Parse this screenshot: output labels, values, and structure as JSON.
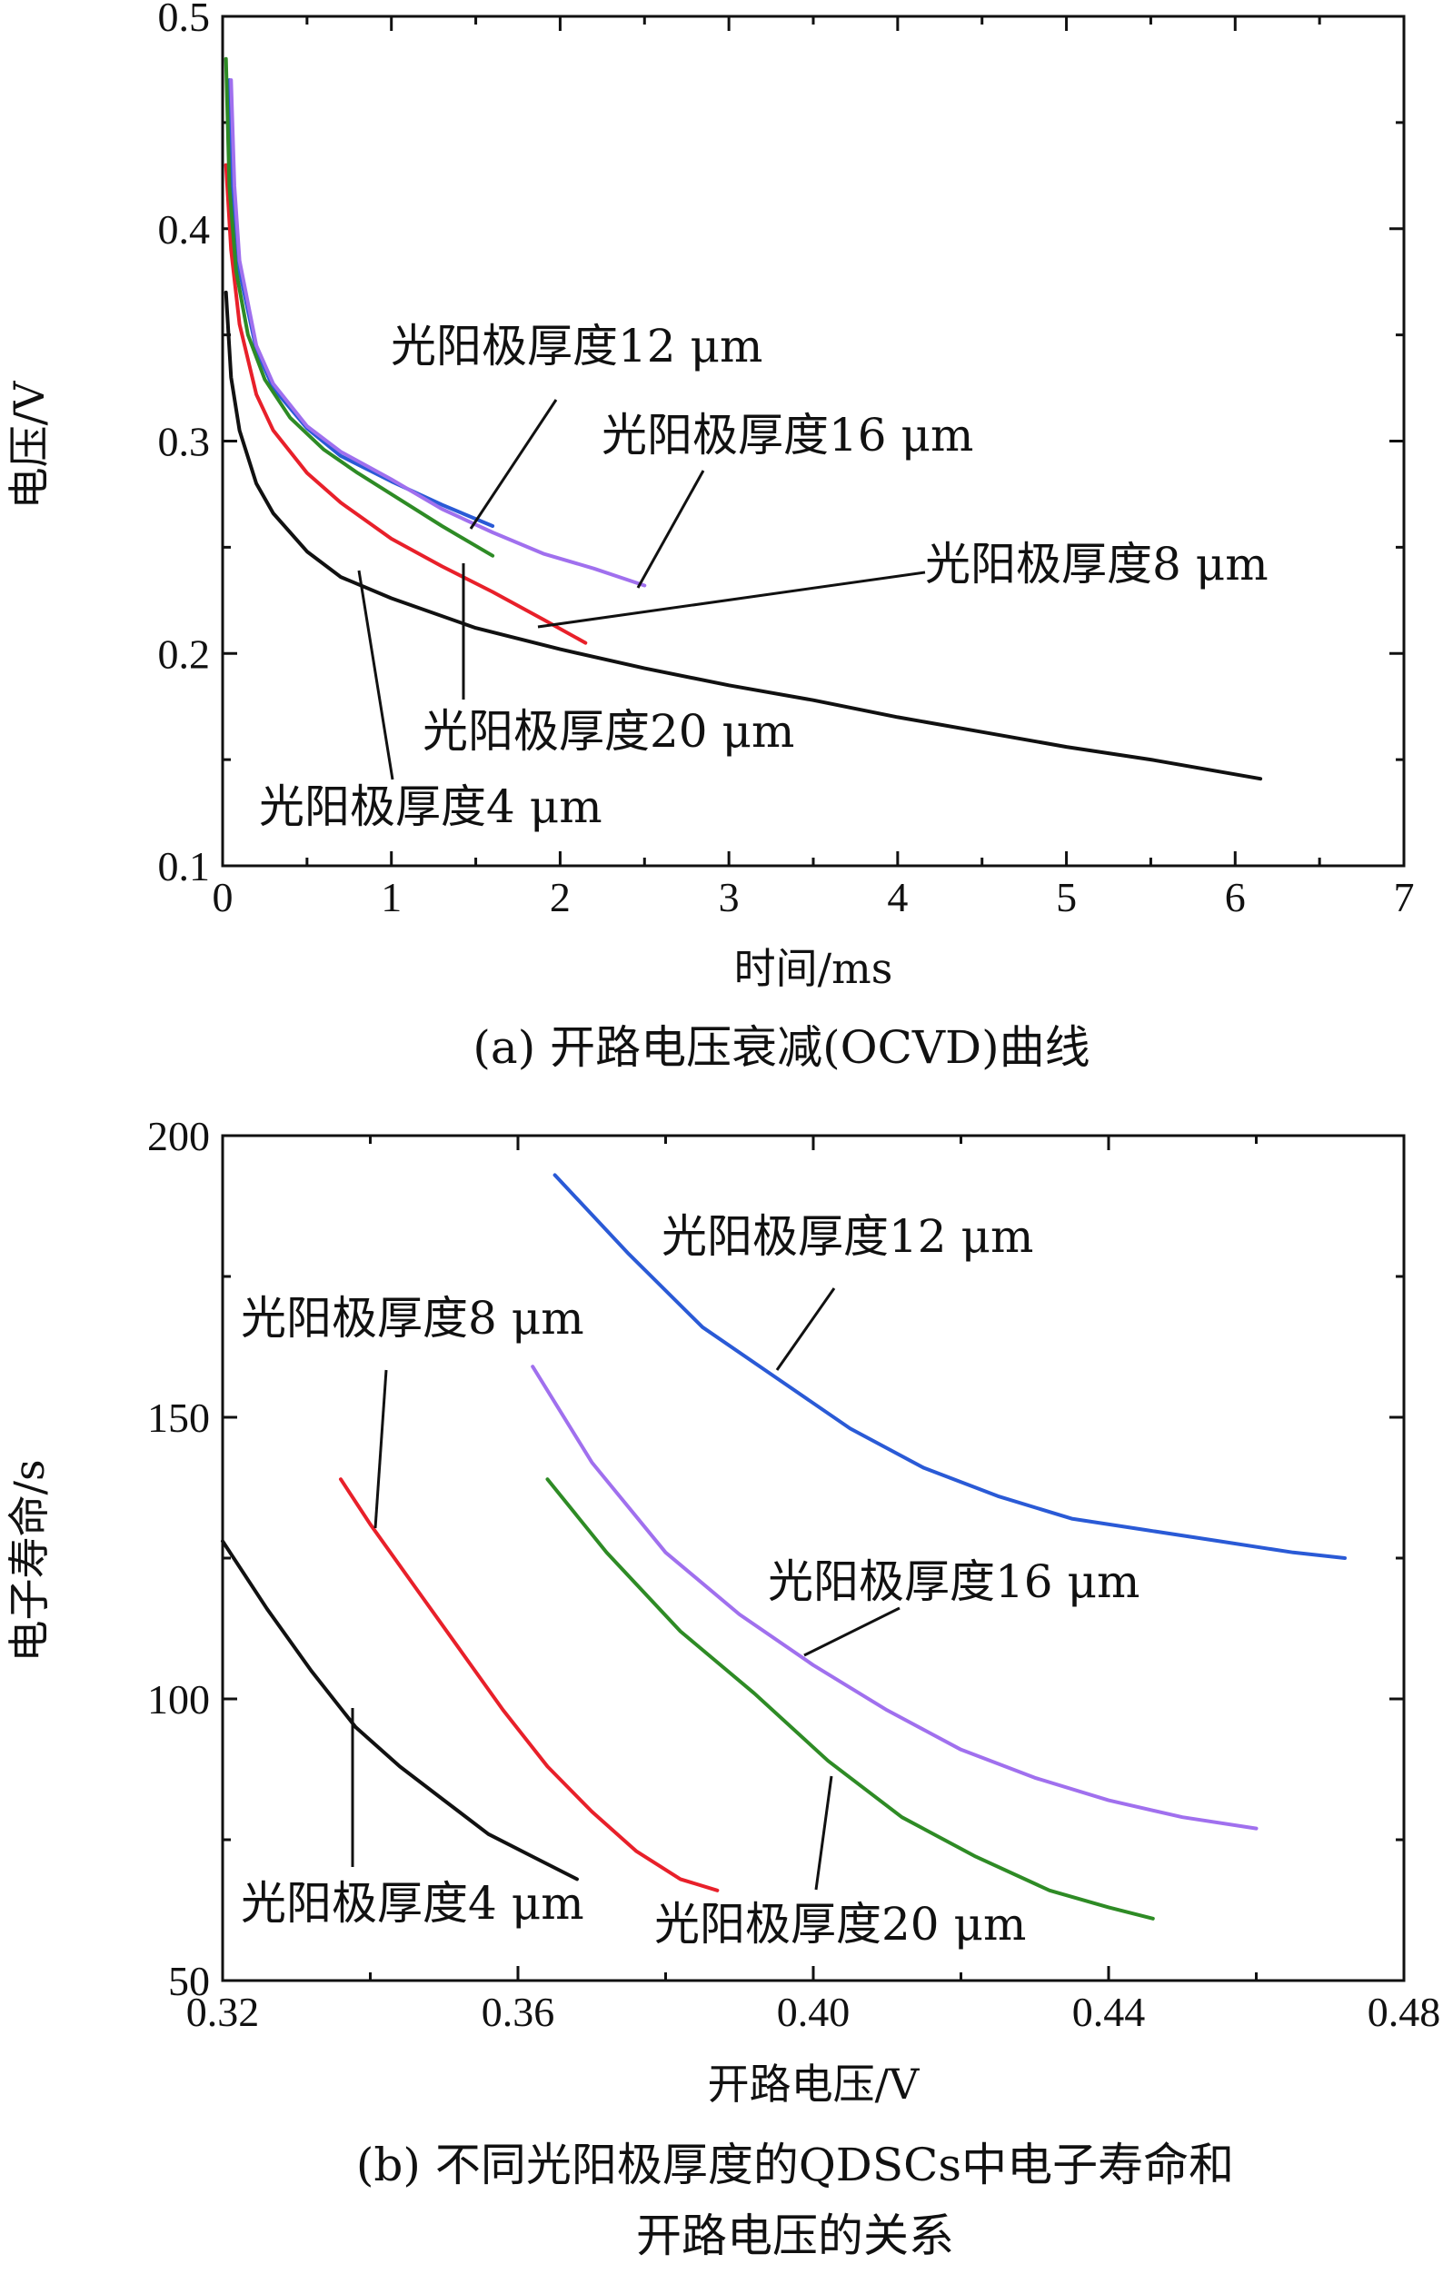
{
  "chart_data": [
    {
      "id": "a",
      "type": "line",
      "caption": "(a) 开路电压衰减(OCVD)曲线",
      "xlabel": "时间/ms",
      "ylabel": "电压/V",
      "xlim": [
        0,
        7
      ],
      "ylim": [
        0.1,
        0.5
      ],
      "xticks": [
        "0",
        "1",
        "2",
        "3",
        "4",
        "5",
        "6",
        "7"
      ],
      "yticks": [
        "0.1",
        "0.2",
        "0.3",
        "0.4",
        "0.5"
      ],
      "grid": false,
      "series": [
        {
          "name": "光阳极厚度4 μm",
          "color": "#111111",
          "x": [
            0.02,
            0.05,
            0.1,
            0.2,
            0.3,
            0.5,
            0.7,
            1.0,
            1.5,
            2.0,
            2.5,
            3.0,
            3.5,
            4.0,
            4.5,
            5.0,
            5.5,
            6.15
          ],
          "y": [
            0.37,
            0.33,
            0.305,
            0.28,
            0.266,
            0.248,
            0.236,
            0.226,
            0.212,
            0.202,
            0.193,
            0.185,
            0.178,
            0.17,
            0.163,
            0.156,
            0.15,
            0.141
          ]
        },
        {
          "name": "光阳极厚度8 μm",
          "color": "#e8202a",
          "x": [
            0.02,
            0.05,
            0.1,
            0.2,
            0.3,
            0.5,
            0.7,
            1.0,
            1.3,
            1.6,
            1.9,
            2.15
          ],
          "y": [
            0.43,
            0.39,
            0.355,
            0.322,
            0.305,
            0.285,
            0.271,
            0.254,
            0.241,
            0.229,
            0.216,
            0.205
          ]
        },
        {
          "name": "光阳极厚度12 μm",
          "color": "#2a5ad6",
          "x": [
            0.04,
            0.06,
            0.1,
            0.2,
            0.3,
            0.5,
            0.7,
            1.0,
            1.3,
            1.6
          ],
          "y": [
            0.47,
            0.42,
            0.38,
            0.343,
            0.325,
            0.306,
            0.293,
            0.281,
            0.27,
            0.26
          ]
        },
        {
          "name": "光阳极厚度16 μm",
          "color": "#a070ee",
          "x": [
            0.05,
            0.07,
            0.1,
            0.2,
            0.3,
            0.5,
            0.7,
            1.0,
            1.3,
            1.6,
            1.9,
            2.2,
            2.5
          ],
          "y": [
            0.47,
            0.42,
            0.385,
            0.345,
            0.327,
            0.307,
            0.295,
            0.282,
            0.268,
            0.257,
            0.247,
            0.24,
            0.232
          ]
        },
        {
          "name": "光阳极厚度20 μm",
          "color": "#2e8b25",
          "x": [
            0.02,
            0.04,
            0.08,
            0.15,
            0.25,
            0.4,
            0.6,
            0.8,
            1.0,
            1.3,
            1.6
          ],
          "y": [
            0.48,
            0.42,
            0.38,
            0.35,
            0.329,
            0.311,
            0.296,
            0.285,
            0.275,
            0.26,
            0.246
          ]
        }
      ],
      "annotations": [
        {
          "text": "光阳极厚度12 μm",
          "series": "光阳极厚度12 μm"
        },
        {
          "text": "光阳极厚度16 μm",
          "series": "光阳极厚度16 μm"
        },
        {
          "text": "光阳极厚度8 μm",
          "series": "光阳极厚度8 μm"
        },
        {
          "text": "光阳极厚度20 μm",
          "series": "光阳极厚度20 μm"
        },
        {
          "text": "光阳极厚度4 μm",
          "series": "光阳极厚度4 μm"
        }
      ]
    },
    {
      "id": "b",
      "type": "line",
      "caption_lines": [
        "(b) 不同光阳极厚度的QDSCs中电子寿命和",
        "开路电压的关系"
      ],
      "xlabel": "开路电压/V",
      "ylabel": "电子寿命/s",
      "xlim": [
        0.32,
        0.48
      ],
      "ylim": [
        50,
        200
      ],
      "xticks": [
        "0.32",
        "0.36",
        "0.40",
        "0.44",
        "0.48"
      ],
      "yticks": [
        "50",
        "100",
        "150",
        "200"
      ],
      "grid": false,
      "series": [
        {
          "name": "光阳极厚度4 μm",
          "color": "#111111",
          "x": [
            0.32,
            0.326,
            0.332,
            0.338,
            0.344,
            0.35,
            0.356,
            0.362,
            0.368
          ],
          "y": [
            128,
            116,
            105,
            95,
            88,
            82,
            76,
            72,
            68
          ]
        },
        {
          "name": "光阳极厚度8 μm",
          "color": "#e8202a",
          "x": [
            0.336,
            0.34,
            0.346,
            0.352,
            0.358,
            0.364,
            0.37,
            0.376,
            0.382,
            0.387
          ],
          "y": [
            139,
            131,
            120,
            109,
            98,
            88,
            80,
            73,
            68,
            66
          ]
        },
        {
          "name": "光阳极厚度12 μm",
          "color": "#2a5ad6",
          "x": [
            0.365,
            0.375,
            0.385,
            0.395,
            0.405,
            0.415,
            0.425,
            0.435,
            0.445,
            0.455,
            0.465,
            0.472
          ],
          "y": [
            193,
            179,
            166,
            157,
            148,
            141,
            136,
            132,
            130,
            128,
            126,
            125
          ]
        },
        {
          "name": "光阳极厚度16 μm",
          "color": "#a070ee",
          "x": [
            0.362,
            0.37,
            0.38,
            0.39,
            0.4,
            0.41,
            0.42,
            0.43,
            0.44,
            0.45,
            0.46
          ],
          "y": [
            159,
            142,
            126,
            115,
            106,
            98,
            91,
            86,
            82,
            79,
            77
          ]
        },
        {
          "name": "光阳极厚度20 μm",
          "color": "#2e8b25",
          "x": [
            0.364,
            0.372,
            0.382,
            0.392,
            0.402,
            0.412,
            0.422,
            0.432,
            0.44,
            0.446
          ],
          "y": [
            139,
            126,
            112,
            101,
            89,
            79,
            72,
            66,
            63,
            61
          ]
        }
      ],
      "annotations": [
        {
          "text": "光阳极厚度12 μm",
          "series": "光阳极厚度12 μm"
        },
        {
          "text": "光阳极厚度8 μm",
          "series": "光阳极厚度8 μm"
        },
        {
          "text": "光阳极厚度16 μm",
          "series": "光阳极厚度16 μm"
        },
        {
          "text": "光阳极厚度4 μm",
          "series": "光阳极厚度4 μm"
        },
        {
          "text": "光阳极厚度20 μm",
          "series": "光阳极厚度20 μm"
        }
      ]
    }
  ]
}
